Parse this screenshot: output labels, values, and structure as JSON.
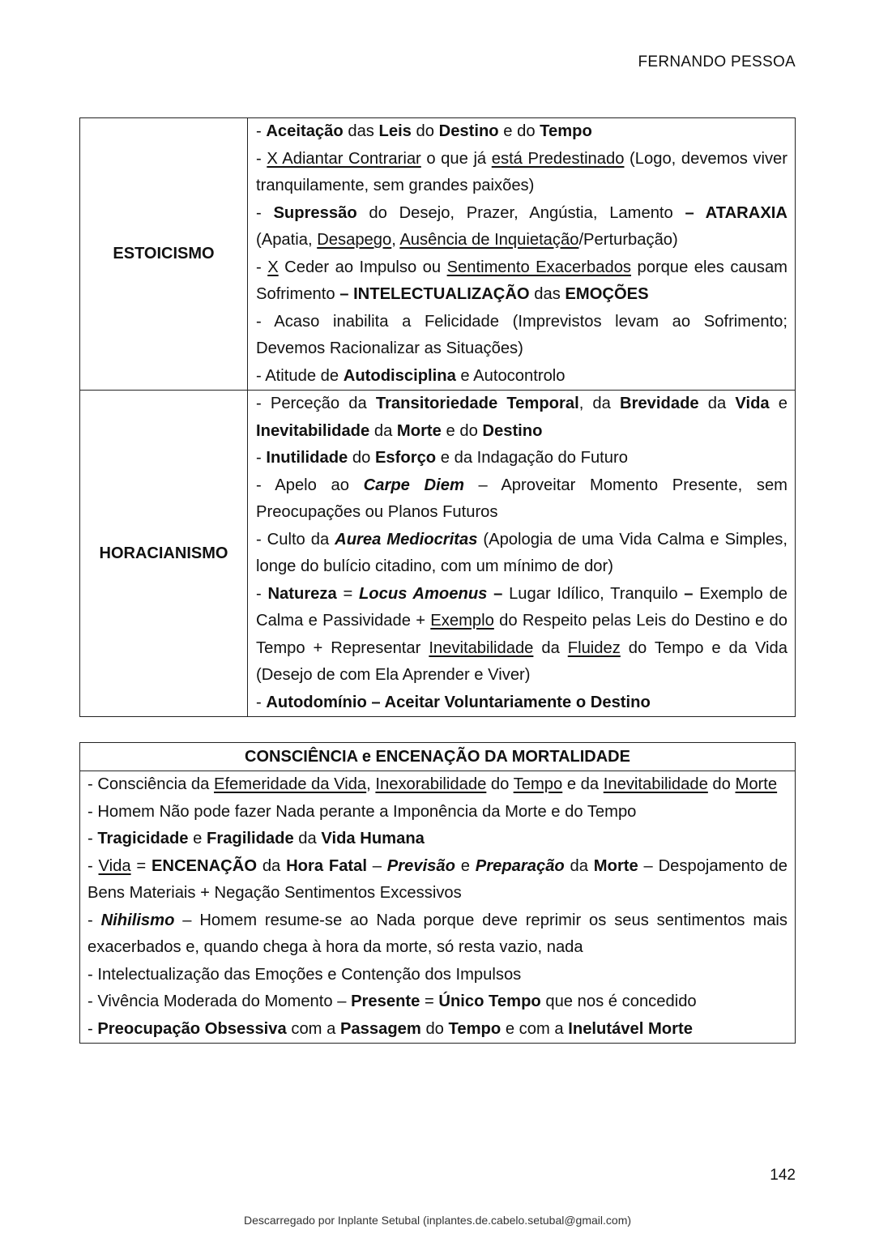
{
  "header": {
    "title": "FERNANDO PESSOA"
  },
  "table1": {
    "rows": [
      {
        "label": "ESTOICISMO",
        "items": [
          [
            [
              "- "
            ],
            [
              "Aceitação",
              "b"
            ],
            [
              " das "
            ],
            [
              "Leis",
              "b"
            ],
            [
              " do "
            ],
            [
              "Destino",
              "b"
            ],
            [
              " e do "
            ],
            [
              "Tempo",
              "b"
            ]
          ],
          [
            [
              "- "
            ],
            [
              "X Adiantar Contrariar",
              "u"
            ],
            [
              " o que já "
            ],
            [
              "está Predestinado",
              "u"
            ],
            [
              " (Logo, devemos viver tranquilamente, sem grandes paixões)"
            ]
          ],
          [
            [
              "- "
            ],
            [
              "Supressão",
              "b"
            ],
            [
              " do Desejo, Prazer, Angústia, Lamento "
            ],
            [
              "– ATARAXIA",
              "b"
            ],
            [
              " (Apatia, "
            ],
            [
              "Desapego",
              "u"
            ],
            [
              ", "
            ],
            [
              "Ausência de Inquietação",
              "u"
            ],
            [
              "/Perturbação)"
            ]
          ],
          [
            [
              "- "
            ],
            [
              "X",
              "u"
            ],
            [
              " Ceder ao Impulso ou "
            ],
            [
              "Sentimento Exacerbados",
              "u"
            ],
            [
              " porque eles causam Sofrimento "
            ],
            [
              "– INTELECTUALIZAÇÃO",
              "b"
            ],
            [
              " das "
            ],
            [
              "EMOÇÕES",
              "b"
            ]
          ],
          [
            [
              "- Acaso inabilita a Felicidade (Imprevistos levam ao Sofrimento; Devemos Racionalizar as Situações)"
            ]
          ],
          [
            [
              "- Atitude de "
            ],
            [
              "Autodisciplina",
              "b"
            ],
            [
              " e Autocontrolo"
            ]
          ]
        ]
      },
      {
        "label": "HORACIANISMO",
        "items": [
          [
            [
              "- Perceção da "
            ],
            [
              "Transitoriedade Temporal",
              "b"
            ],
            [
              ", da "
            ],
            [
              "Brevidade",
              "b"
            ],
            [
              " da "
            ],
            [
              "Vida",
              "b"
            ],
            [
              " e "
            ],
            [
              "Inevitabilidade",
              "b"
            ],
            [
              " da "
            ],
            [
              "Morte",
              "b"
            ],
            [
              " e do "
            ],
            [
              "Destino",
              "b"
            ]
          ],
          [
            [
              "- "
            ],
            [
              "Inutilidade",
              "b"
            ],
            [
              " do "
            ],
            [
              "Esforço",
              "b"
            ],
            [
              " e da Indagação do Futuro"
            ]
          ],
          [
            [
              "- Apelo ao "
            ],
            [
              "Carpe Diem",
              "bi"
            ],
            [
              " – Aproveitar Momento Presente, sem Preocupações ou Planos Futuros"
            ]
          ],
          [
            [
              "- Culto da "
            ],
            [
              "Aurea Mediocritas",
              "bi"
            ],
            [
              " (Apologia de uma Vida Calma e Simples, longe do bulício citadino, com um mínimo de dor)"
            ]
          ],
          [
            [
              "- "
            ],
            [
              "Natureza",
              "b"
            ],
            [
              " = "
            ],
            [
              "Locus Amoenus",
              "bi"
            ],
            [
              " "
            ],
            [
              "–",
              "b"
            ],
            [
              " Lugar Idílico, Tranquilo "
            ],
            [
              "–",
              "b"
            ],
            [
              " Exemplo de Calma e Passividade + "
            ],
            [
              "Exemplo",
              "u"
            ],
            [
              " do Respeito pelas Leis do Destino e do Tempo + Representar "
            ],
            [
              "Inevitabilidade",
              "u"
            ],
            [
              " da "
            ],
            [
              "Fluidez",
              "u"
            ],
            [
              " do Tempo e da Vida (Desejo de com Ela Aprender e Viver)"
            ]
          ],
          [
            [
              "- "
            ],
            [
              "Autodomínio – Aceitar Voluntariamente o Destino",
              "b"
            ]
          ]
        ]
      }
    ]
  },
  "table2": {
    "title": "CONSCIÊNCIA e ENCENAÇÃO DA MORTALIDADE",
    "items": [
      [
        [
          "- Consciência da "
        ],
        [
          "Efemeridade da Vida",
          "u"
        ],
        [
          ", "
        ],
        [
          "Inexorabilidade",
          "u"
        ],
        [
          " do "
        ],
        [
          "Tempo",
          "u"
        ],
        [
          " e da "
        ],
        [
          "Inevitabilidade",
          "u"
        ],
        [
          " do "
        ],
        [
          "Morte",
          "u"
        ]
      ],
      [
        [
          "- Homem Não pode fazer Nada perante a Imponência da Morte e do Tempo"
        ]
      ],
      [
        [
          "- "
        ],
        [
          "Tragicidade",
          "b"
        ],
        [
          " e "
        ],
        [
          "Fragilidade",
          "b"
        ],
        [
          " da "
        ],
        [
          "Vida Humana",
          "b"
        ]
      ],
      [
        [
          "- "
        ],
        [
          "Vida",
          "u"
        ],
        [
          " = "
        ],
        [
          "ENCENAÇÃO",
          "b"
        ],
        [
          " da "
        ],
        [
          "Hora Fatal",
          "b"
        ],
        [
          " – "
        ],
        [
          "Previsão",
          "bi"
        ],
        [
          " e "
        ],
        [
          "Preparação",
          "bi"
        ],
        [
          " da "
        ],
        [
          "Morte",
          "b"
        ],
        [
          " – Despojamento de Bens Materiais + Negação Sentimentos Excessivos"
        ]
      ],
      [
        [
          "- "
        ],
        [
          "Nihilismo",
          "bi"
        ],
        [
          " – Homem resume-se ao Nada porque deve reprimir os seus sentimentos mais exacerbados e, quando chega à hora da morte, só resta vazio, nada"
        ]
      ],
      [
        [
          "- Intelectualização das Emoções e Contenção dos Impulsos"
        ]
      ],
      [
        [
          "- Vivência Moderada do Momento – "
        ],
        [
          "Presente",
          "b"
        ],
        [
          " = "
        ],
        [
          "Único Tempo",
          "b"
        ],
        [
          " que nos é concedido"
        ]
      ],
      [
        [
          "- "
        ],
        [
          "Preocupação Obsessiva",
          "b"
        ],
        [
          " com a "
        ],
        [
          "Passagem",
          "b"
        ],
        [
          " do "
        ],
        [
          "Tempo",
          "b"
        ],
        [
          " e com a "
        ],
        [
          "Inelutável Morte",
          "b"
        ]
      ]
    ]
  },
  "page_number": "142",
  "footer": "Descarregado por Inplante Setubal (inplantes.de.cabelo.setubal@gmail.com)"
}
